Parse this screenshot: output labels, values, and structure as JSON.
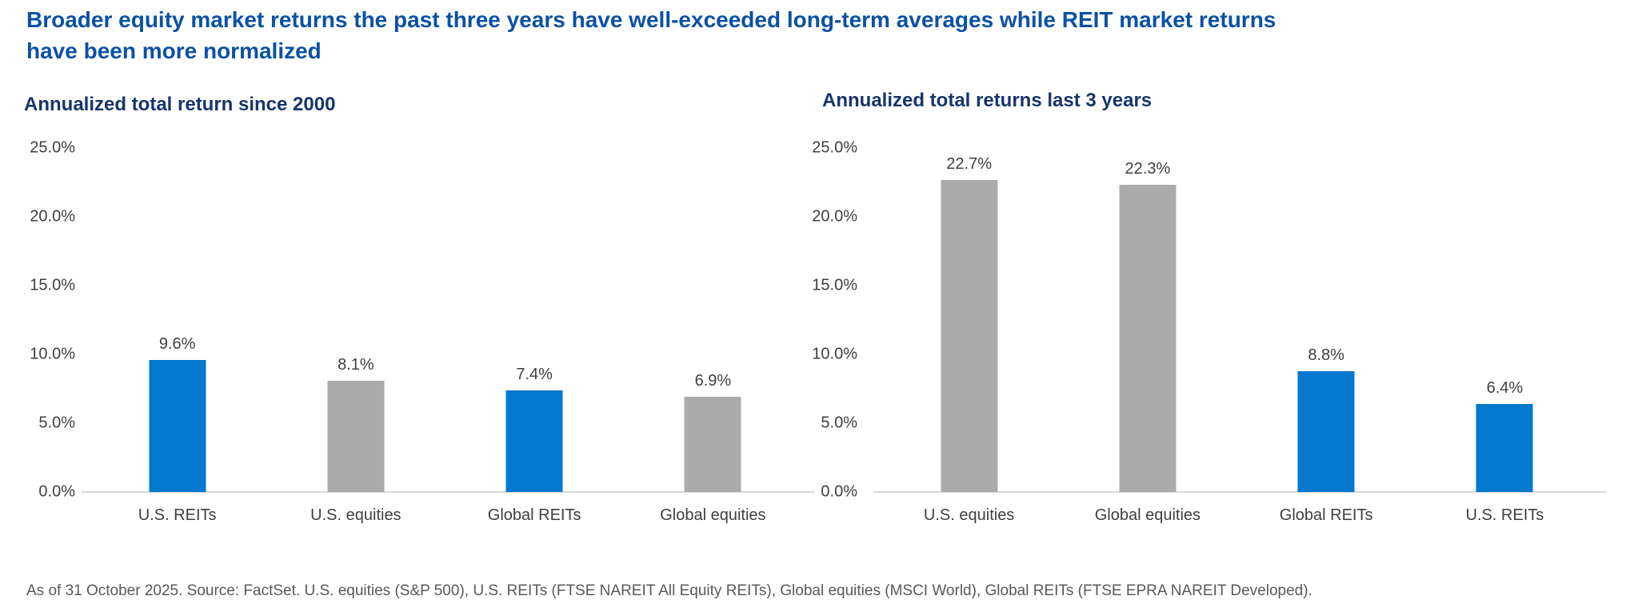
{
  "title": "Broader equity market returns the past three years have well-exceeded long-term averages while REIT market returns have been more normalized",
  "footnote": "As of 31 October 2025. Source: FactSet. U.S. equities (S&P 500), U.S. REITs (FTSE NAREIT All Equity REITs), Global equities (MSCI World), Global REITs (FTSE EPRA NAREIT Developed).",
  "colors": {
    "title_blue": "#0b51a5",
    "subtitle_navy": "#16356b",
    "bar_blue": "#0477cf",
    "bar_gray": "#ababab",
    "axis_text": "#3f3f3f",
    "footnote_gray": "#595959",
    "axis_line": "#d9d9d9"
  },
  "chart_data": [
    {
      "type": "bar",
      "title": "Annualized total return since 2000",
      "categories": [
        "U.S. REITs",
        "U.S. equities",
        "Global REITs",
        "Global equities"
      ],
      "values": [
        9.6,
        8.1,
        7.4,
        6.9
      ],
      "labels": [
        "9.6%",
        "8.1%",
        "7.4%",
        "6.9%"
      ],
      "bar_colors": [
        "blue",
        "gray",
        "blue",
        "gray"
      ],
      "xlabel": "",
      "ylabel": "",
      "ylim": [
        0,
        25
      ],
      "yticks": [
        "0.0%",
        "5.0%",
        "10.0%",
        "15.0%",
        "20.0%",
        "25.0%"
      ],
      "grid": false,
      "legend": "none"
    },
    {
      "type": "bar",
      "title": "Annualized total returns last 3 years",
      "categories": [
        "U.S. equities",
        "Global equities",
        "Global REITs",
        "U.S. REITs"
      ],
      "values": [
        22.7,
        22.3,
        8.8,
        6.4
      ],
      "labels": [
        "22.7%",
        "22.3%",
        "8.8%",
        "6.4%"
      ],
      "bar_colors": [
        "gray",
        "gray",
        "blue",
        "blue"
      ],
      "xlabel": "",
      "ylabel": "",
      "ylim": [
        0,
        25
      ],
      "yticks": [
        "0.0%",
        "5.0%",
        "10.0%",
        "15.0%",
        "20.0%",
        "25.0%"
      ],
      "grid": false,
      "legend": "none"
    }
  ]
}
